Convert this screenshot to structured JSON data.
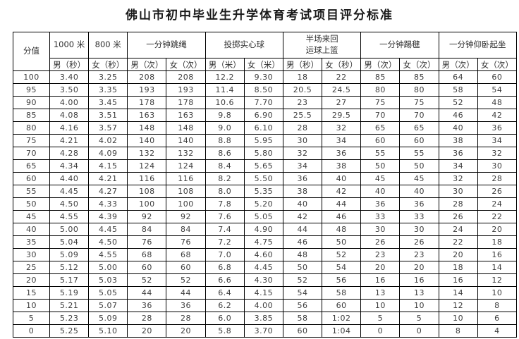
{
  "title": "佛山市初中毕业生升学体育考试项目评分标准",
  "table": {
    "score_header": "分值",
    "groups": [
      {
        "label": "1000 米",
        "sub": [
          "男（秒）"
        ]
      },
      {
        "label": "800 米",
        "sub": [
          "女（秒）"
        ]
      },
      {
        "label": "一分钟跳绳",
        "sub": [
          "男（次）",
          "女（次）"
        ]
      },
      {
        "label": "投掷实心球",
        "sub": [
          "男（米）",
          "女（米）"
        ]
      },
      {
        "label": "半场来回\n运球上篮",
        "sub": [
          "男（秒）",
          "女（秒）"
        ]
      },
      {
        "label": "一分钟踢毽",
        "sub": [
          "男（次）",
          "女（次）"
        ]
      },
      {
        "label": "一分钟仰卧起坐",
        "sub": [
          "男（次）",
          "女（次）"
        ]
      }
    ],
    "rows": [
      [
        "100",
        "3.40",
        "3.25",
        "208",
        "208",
        "12.2",
        "9.30",
        "18",
        "22",
        "85",
        "85",
        "64",
        "60"
      ],
      [
        "95",
        "3.50",
        "3.35",
        "193",
        "193",
        "11.4",
        "8.50",
        "20.5",
        "24.5",
        "80",
        "80",
        "58",
        "54"
      ],
      [
        "90",
        "4.00",
        "3.45",
        "178",
        "178",
        "10.6",
        "7.70",
        "23",
        "27",
        "75",
        "75",
        "52",
        "48"
      ],
      [
        "85",
        "4.08",
        "3.51",
        "163",
        "163",
        "9.8",
        "6.90",
        "25.5",
        "29.5",
        "70",
        "70",
        "46",
        "42"
      ],
      [
        "80",
        "4.16",
        "3.57",
        "148",
        "148",
        "9.0",
        "6.10",
        "28",
        "32",
        "65",
        "65",
        "40",
        "36"
      ],
      [
        "75",
        "4.21",
        "4.02",
        "140",
        "140",
        "8.8",
        "5.95",
        "30",
        "34",
        "60",
        "60",
        "38",
        "34"
      ],
      [
        "70",
        "4.28",
        "4.09",
        "132",
        "132",
        "8.6",
        "5.80",
        "32",
        "36",
        "55",
        "55",
        "36",
        "32"
      ],
      [
        "65",
        "4.34",
        "4.15",
        "124",
        "124",
        "8.4",
        "5.65",
        "34",
        "38",
        "50",
        "50",
        "34",
        "30"
      ],
      [
        "60",
        "4.40",
        "4.21",
        "116",
        "116",
        "8.2",
        "5.50",
        "36",
        "40",
        "45",
        "45",
        "32",
        "28"
      ],
      [
        "55",
        "4.45",
        "4.27",
        "108",
        "108",
        "8.0",
        "5.35",
        "38",
        "42",
        "40",
        "40",
        "30",
        "26"
      ],
      [
        "50",
        "4.50",
        "4.33",
        "100",
        "100",
        "7.8",
        "5.20",
        "40",
        "44",
        "36",
        "36",
        "28",
        "24"
      ],
      [
        "45",
        "4.55",
        "4.39",
        "92",
        "92",
        "7.6",
        "5.05",
        "42",
        "46",
        "33",
        "33",
        "26",
        "22"
      ],
      [
        "40",
        "5.00",
        "4.45",
        "84",
        "84",
        "7.4",
        "4.90",
        "44",
        "48",
        "30",
        "30",
        "24",
        "20"
      ],
      [
        "35",
        "5.04",
        "4.50",
        "76",
        "76",
        "7.2",
        "4.75",
        "46",
        "50",
        "26",
        "26",
        "22",
        "18"
      ],
      [
        "30",
        "5.09",
        "4.55",
        "68",
        "68",
        "7.0",
        "4.60",
        "48",
        "52",
        "23",
        "23",
        "20",
        "16"
      ],
      [
        "25",
        "5.12",
        "5.00",
        "60",
        "60",
        "6.8",
        "4.45",
        "50",
        "54",
        "20",
        "20",
        "18",
        "14"
      ],
      [
        "20",
        "5.17",
        "5.03",
        "52",
        "52",
        "6.6",
        "4.30",
        "52",
        "56",
        "16",
        "16",
        "16",
        "12"
      ],
      [
        "15",
        "5.19",
        "5.05",
        "44",
        "44",
        "6.4",
        "4.15",
        "54",
        "58",
        "13",
        "13",
        "14",
        "10"
      ],
      [
        "10",
        "5.21",
        "5.07",
        "36",
        "36",
        "6.2",
        "4.00",
        "56",
        "60",
        "10",
        "10",
        "12",
        "8"
      ],
      [
        "5",
        "5.23",
        "5.09",
        "28",
        "28",
        "6.0",
        "3.85",
        "58",
        "1:02",
        "5",
        "5",
        "10",
        "6"
      ],
      [
        "0",
        "5.25",
        "5.10",
        "20",
        "20",
        "5.8",
        "3.70",
        "60",
        "1:04",
        "0",
        "0",
        "8",
        "4"
      ]
    ]
  }
}
